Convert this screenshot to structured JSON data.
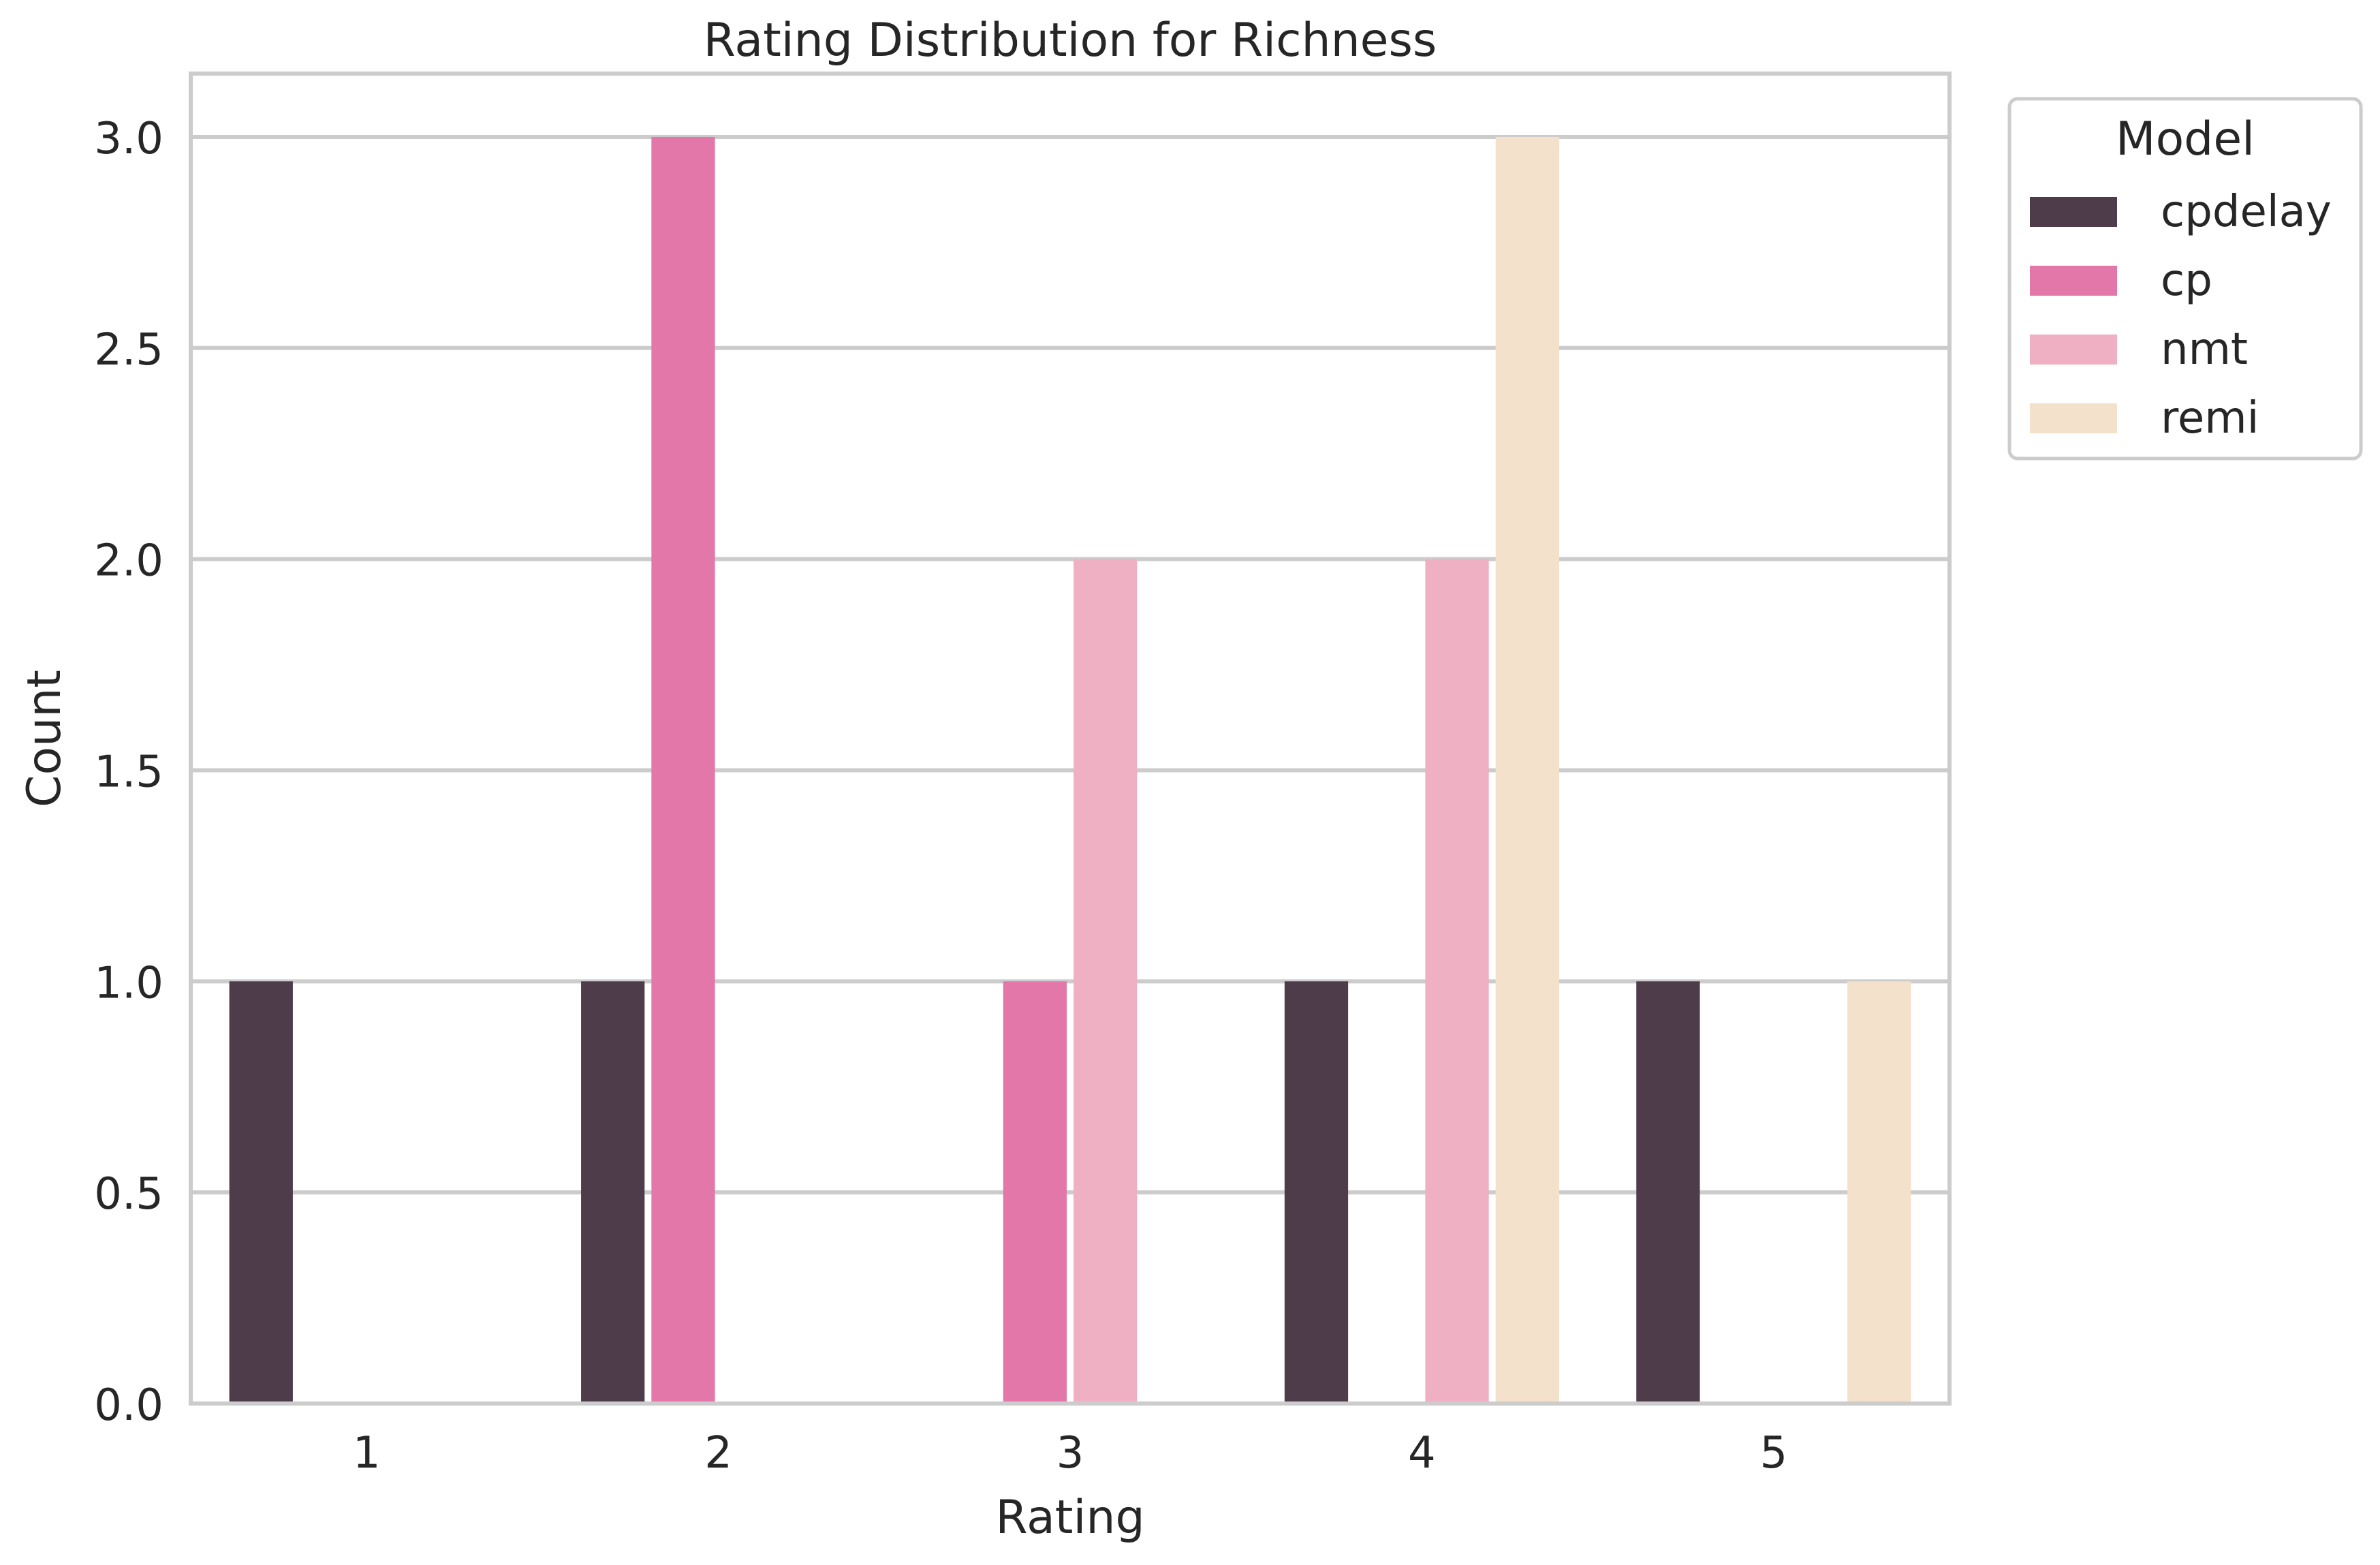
{
  "chart_data": {
    "type": "bar",
    "title": "Rating Distribution for Richness",
    "xlabel": "Rating",
    "ylabel": "Count",
    "categories": [
      "1",
      "2",
      "3",
      "4",
      "5"
    ],
    "ylim": [
      0,
      3.15
    ],
    "yticks": [
      "0.0",
      "0.5",
      "1.0",
      "1.5",
      "2.0",
      "2.5",
      "3.0"
    ],
    "grid": true,
    "legend": {
      "title": "Model",
      "placement": "top-right outside"
    },
    "series": [
      {
        "name": "cpdelay",
        "color": "#4f3c4a",
        "values": [
          1,
          1,
          0,
          1,
          1
        ]
      },
      {
        "name": "cp",
        "color": "#e377aa",
        "values": [
          0,
          3,
          1,
          0,
          0
        ]
      },
      {
        "name": "nmt",
        "color": "#eeb0c2",
        "values": [
          0,
          0,
          2,
          2,
          0
        ]
      },
      {
        "name": "remi",
        "color": "#f3e1cb",
        "values": [
          0,
          0,
          0,
          3,
          1
        ]
      }
    ]
  }
}
